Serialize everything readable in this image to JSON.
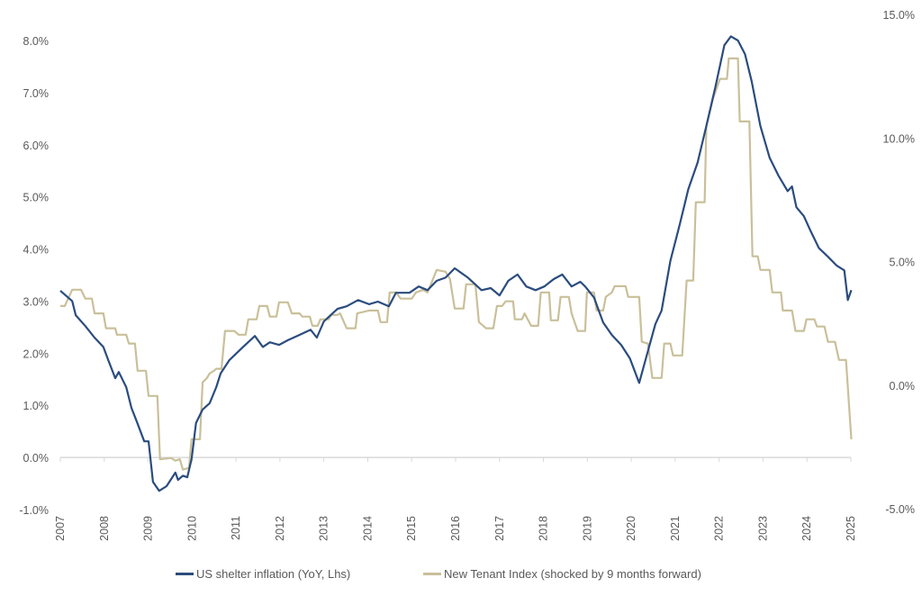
{
  "chart_data": {
    "type": "line",
    "title": "",
    "xlabel": "",
    "ylabel_left": "",
    "ylabel_right": "",
    "x_ticks": [
      "2007",
      "2008",
      "2009",
      "2010",
      "2011",
      "2012",
      "2013",
      "2014",
      "2015",
      "2016",
      "2017",
      "2018",
      "2019",
      "2020",
      "2021",
      "2022",
      "2023",
      "2024",
      "2025"
    ],
    "xlim": [
      2007,
      2025
    ],
    "y_left": {
      "lim": [
        -1,
        8
      ],
      "ticks": [
        "-1.0%",
        "0.0%",
        "1.0%",
        "2.0%",
        "3.0%",
        "4.0%",
        "5.0%",
        "6.0%",
        "7.0%",
        "8.0%"
      ]
    },
    "y_right": {
      "lim": [
        -5,
        15
      ],
      "ticks": [
        "-5.0%",
        "0.0%",
        "5.0%",
        "10.0%",
        "15.0%"
      ]
    },
    "grid": false,
    "legend_position": "bottom",
    "series": [
      {
        "name": "US shelter inflation (YoY, Lhs)",
        "axis": "left",
        "color": "#2b4c7e",
        "points": [
          [
            2007.0,
            3.2
          ],
          [
            2007.27,
            3.0
          ],
          [
            2007.35,
            2.73
          ],
          [
            2007.57,
            2.52
          ],
          [
            2007.78,
            2.3
          ],
          [
            2007.98,
            2.12
          ],
          [
            2008.09,
            1.87
          ],
          [
            2008.25,
            1.52
          ],
          [
            2008.33,
            1.64
          ],
          [
            2008.5,
            1.35
          ],
          [
            2008.62,
            0.95
          ],
          [
            2008.74,
            0.69
          ],
          [
            2008.91,
            0.31
          ],
          [
            2009.01,
            0.31
          ],
          [
            2009.11,
            -0.47
          ],
          [
            2009.25,
            -0.64
          ],
          [
            2009.42,
            -0.55
          ],
          [
            2009.62,
            -0.29
          ],
          [
            2009.68,
            -0.43
          ],
          [
            2009.79,
            -0.35
          ],
          [
            2009.89,
            -0.38
          ],
          [
            2009.99,
            -0.03
          ],
          [
            2010.09,
            0.66
          ],
          [
            2010.24,
            0.92
          ],
          [
            2010.4,
            1.04
          ],
          [
            2010.55,
            1.35
          ],
          [
            2010.65,
            1.61
          ],
          [
            2010.85,
            1.87
          ],
          [
            2011.0,
            1.99
          ],
          [
            2011.16,
            2.12
          ],
          [
            2011.43,
            2.33
          ],
          [
            2011.61,
            2.12
          ],
          [
            2011.77,
            2.21
          ],
          [
            2011.98,
            2.16
          ],
          [
            2012.18,
            2.25
          ],
          [
            2012.39,
            2.33
          ],
          [
            2012.7,
            2.45
          ],
          [
            2012.84,
            2.3
          ],
          [
            2013.0,
            2.61
          ],
          [
            2013.31,
            2.85
          ],
          [
            2013.52,
            2.9
          ],
          [
            2013.78,
            3.02
          ],
          [
            2014.03,
            2.94
          ],
          [
            2014.23,
            2.99
          ],
          [
            2014.48,
            2.9
          ],
          [
            2014.64,
            3.16
          ],
          [
            2014.95,
            3.16
          ],
          [
            2015.16,
            3.28
          ],
          [
            2015.36,
            3.21
          ],
          [
            2015.57,
            3.39
          ],
          [
            2015.77,
            3.45
          ],
          [
            2015.98,
            3.63
          ],
          [
            2016.28,
            3.45
          ],
          [
            2016.59,
            3.21
          ],
          [
            2016.8,
            3.25
          ],
          [
            2017.0,
            3.11
          ],
          [
            2017.2,
            3.39
          ],
          [
            2017.41,
            3.51
          ],
          [
            2017.61,
            3.28
          ],
          [
            2017.82,
            3.21
          ],
          [
            2018.02,
            3.28
          ],
          [
            2018.23,
            3.42
          ],
          [
            2018.43,
            3.51
          ],
          [
            2018.64,
            3.28
          ],
          [
            2018.84,
            3.37
          ],
          [
            2018.95,
            3.28
          ],
          [
            2019.15,
            3.07
          ],
          [
            2019.36,
            2.59
          ],
          [
            2019.56,
            2.35
          ],
          [
            2019.77,
            2.16
          ],
          [
            2019.97,
            1.9
          ],
          [
            2020.18,
            1.43
          ],
          [
            2020.38,
            2.04
          ],
          [
            2020.55,
            2.56
          ],
          [
            2020.69,
            2.82
          ],
          [
            2020.89,
            3.77
          ],
          [
            2021.1,
            4.46
          ],
          [
            2021.3,
            5.15
          ],
          [
            2021.51,
            5.66
          ],
          [
            2021.71,
            6.36
          ],
          [
            2021.92,
            7.13
          ],
          [
            2022.12,
            7.91
          ],
          [
            2022.27,
            8.08
          ],
          [
            2022.43,
            8.0
          ],
          [
            2022.59,
            7.74
          ],
          [
            2022.74,
            7.22
          ],
          [
            2022.94,
            6.36
          ],
          [
            2023.15,
            5.75
          ],
          [
            2023.35,
            5.41
          ],
          [
            2023.56,
            5.11
          ],
          [
            2023.66,
            5.2
          ],
          [
            2023.76,
            4.8
          ],
          [
            2023.93,
            4.63
          ],
          [
            2024.07,
            4.37
          ],
          [
            2024.27,
            4.02
          ],
          [
            2024.48,
            3.85
          ],
          [
            2024.68,
            3.68
          ],
          [
            2024.85,
            3.59
          ],
          [
            2024.93,
            3.02
          ],
          [
            2025.01,
            3.21
          ]
        ]
      },
      {
        "name": "New Tenant Index (shocked by 9 months forward)",
        "axis": "right",
        "color": "#c9c09a",
        "points": [
          [
            2007.0,
            3.2
          ],
          [
            2007.1,
            3.2
          ],
          [
            2007.27,
            3.86
          ],
          [
            2007.47,
            3.86
          ],
          [
            2007.57,
            3.5
          ],
          [
            2007.72,
            3.5
          ],
          [
            2007.78,
            2.9
          ],
          [
            2007.98,
            2.9
          ],
          [
            2008.04,
            2.3
          ],
          [
            2008.25,
            2.3
          ],
          [
            2008.29,
            2.04
          ],
          [
            2008.5,
            2.04
          ],
          [
            2008.56,
            1.68
          ],
          [
            2008.7,
            1.68
          ],
          [
            2008.76,
            0.58
          ],
          [
            2008.95,
            0.58
          ],
          [
            2009.01,
            -0.44
          ],
          [
            2009.21,
            -0.44
          ],
          [
            2009.27,
            -3.0
          ],
          [
            2009.52,
            -2.95
          ],
          [
            2009.62,
            -3.06
          ],
          [
            2009.72,
            -3.0
          ],
          [
            2009.79,
            -3.42
          ],
          [
            2009.93,
            -3.35
          ],
          [
            2009.99,
            -2.19
          ],
          [
            2010.18,
            -2.19
          ],
          [
            2010.24,
            0.11
          ],
          [
            2010.34,
            0.29
          ],
          [
            2010.4,
            0.47
          ],
          [
            2010.5,
            0.58
          ],
          [
            2010.55,
            0.66
          ],
          [
            2010.67,
            0.66
          ],
          [
            2010.75,
            2.19
          ],
          [
            2010.96,
            2.19
          ],
          [
            2011.06,
            2.04
          ],
          [
            2011.22,
            2.04
          ],
          [
            2011.28,
            2.66
          ],
          [
            2011.47,
            2.66
          ],
          [
            2011.53,
            3.2
          ],
          [
            2011.71,
            3.2
          ],
          [
            2011.77,
            2.77
          ],
          [
            2011.92,
            2.77
          ],
          [
            2011.98,
            3.35
          ],
          [
            2012.18,
            3.35
          ],
          [
            2012.27,
            2.9
          ],
          [
            2012.45,
            2.9
          ],
          [
            2012.51,
            2.77
          ],
          [
            2012.68,
            2.77
          ],
          [
            2012.74,
            2.4
          ],
          [
            2012.86,
            2.4
          ],
          [
            2012.92,
            2.66
          ],
          [
            2013.11,
            2.66
          ],
          [
            2013.17,
            2.84
          ],
          [
            2013.31,
            2.84
          ],
          [
            2013.37,
            2.9
          ],
          [
            2013.52,
            2.3
          ],
          [
            2013.72,
            2.3
          ],
          [
            2013.76,
            2.9
          ],
          [
            2014.03,
            3.02
          ],
          [
            2014.23,
            3.02
          ],
          [
            2014.29,
            2.55
          ],
          [
            2014.44,
            2.55
          ],
          [
            2014.5,
            3.75
          ],
          [
            2014.64,
            3.75
          ],
          [
            2014.75,
            3.5
          ],
          [
            2015.0,
            3.5
          ],
          [
            2015.1,
            3.75
          ],
          [
            2015.26,
            3.86
          ],
          [
            2015.36,
            3.75
          ],
          [
            2015.42,
            4.0
          ],
          [
            2015.57,
            4.66
          ],
          [
            2015.77,
            4.59
          ],
          [
            2015.87,
            4.3
          ],
          [
            2015.98,
            3.1
          ],
          [
            2016.18,
            3.1
          ],
          [
            2016.24,
            4.08
          ],
          [
            2016.45,
            4.08
          ],
          [
            2016.53,
            2.55
          ],
          [
            2016.69,
            2.3
          ],
          [
            2016.86,
            2.3
          ],
          [
            2016.94,
            3.2
          ],
          [
            2017.06,
            3.2
          ],
          [
            2017.14,
            3.39
          ],
          [
            2017.31,
            3.39
          ],
          [
            2017.35,
            2.66
          ],
          [
            2017.51,
            2.66
          ],
          [
            2017.57,
            2.9
          ],
          [
            2017.72,
            2.4
          ],
          [
            2017.88,
            2.4
          ],
          [
            2017.94,
            3.75
          ],
          [
            2018.13,
            3.75
          ],
          [
            2018.17,
            2.62
          ],
          [
            2018.33,
            2.62
          ],
          [
            2018.39,
            3.57
          ],
          [
            2018.58,
            3.57
          ],
          [
            2018.64,
            2.9
          ],
          [
            2018.78,
            2.19
          ],
          [
            2018.95,
            2.19
          ],
          [
            2018.99,
            3.75
          ],
          [
            2019.15,
            3.75
          ],
          [
            2019.21,
            3.02
          ],
          [
            2019.36,
            3.02
          ],
          [
            2019.42,
            3.57
          ],
          [
            2019.56,
            3.75
          ],
          [
            2019.62,
            4.0
          ],
          [
            2019.87,
            4.0
          ],
          [
            2019.93,
            3.57
          ],
          [
            2020.18,
            3.57
          ],
          [
            2020.24,
            1.75
          ],
          [
            2020.38,
            1.68
          ],
          [
            2020.48,
            0.29
          ],
          [
            2020.69,
            0.29
          ],
          [
            2020.75,
            1.68
          ],
          [
            2020.89,
            1.68
          ],
          [
            2020.95,
            1.2
          ],
          [
            2021.16,
            1.2
          ],
          [
            2021.26,
            4.23
          ],
          [
            2021.41,
            4.23
          ],
          [
            2021.47,
            7.4
          ],
          [
            2021.67,
            7.4
          ],
          [
            2021.71,
            10.49
          ],
          [
            2021.86,
            11.58
          ],
          [
            2022.02,
            12.39
          ],
          [
            2022.18,
            12.39
          ],
          [
            2022.22,
            13.22
          ],
          [
            2022.43,
            13.22
          ],
          [
            2022.47,
            10.67
          ],
          [
            2022.69,
            10.67
          ],
          [
            2022.76,
            5.21
          ],
          [
            2022.88,
            5.21
          ],
          [
            2022.94,
            4.66
          ],
          [
            2023.15,
            4.66
          ],
          [
            2023.21,
            3.75
          ],
          [
            2023.41,
            3.75
          ],
          [
            2023.45,
            3.02
          ],
          [
            2023.66,
            3.02
          ],
          [
            2023.74,
            2.19
          ],
          [
            2023.93,
            2.19
          ],
          [
            2023.99,
            2.66
          ],
          [
            2024.17,
            2.66
          ],
          [
            2024.23,
            2.37
          ],
          [
            2024.4,
            2.37
          ],
          [
            2024.48,
            1.75
          ],
          [
            2024.64,
            1.75
          ],
          [
            2024.73,
            1.02
          ],
          [
            2024.89,
            1.02
          ],
          [
            2025.01,
            -2.19
          ]
        ]
      }
    ]
  }
}
